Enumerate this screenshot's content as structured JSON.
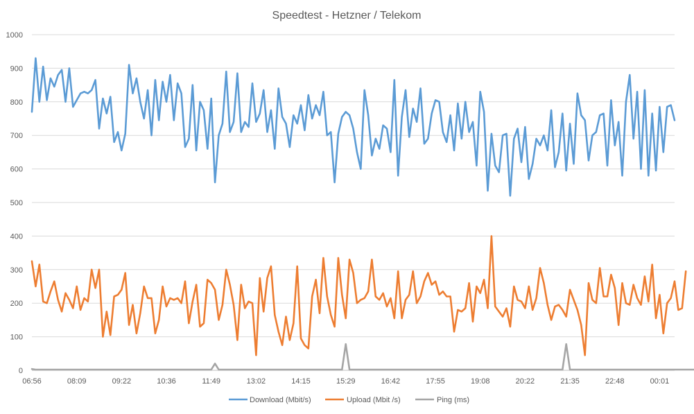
{
  "chart_data": {
    "type": "line",
    "title": "Speedtest - Hetzner / Telekom",
    "xlabel": "",
    "ylabel": "",
    "ylim": [
      0,
      1000
    ],
    "yticks": [
      0,
      100,
      200,
      300,
      400,
      500,
      600,
      700,
      800,
      900,
      1000
    ],
    "x_tick_labels": [
      "06:56",
      "08:09",
      "09:22",
      "10:36",
      "11:49",
      "13:02",
      "14:15",
      "15:29",
      "16:42",
      "17:55",
      "19:08",
      "20:22",
      "21:35",
      "22:48",
      "00:01"
    ],
    "x_label_step": 12,
    "grid": "horizontal",
    "legend_position": "bottom",
    "series": [
      {
        "name": "Download (Mbit/s)",
        "color": "#5B9BD5",
        "values": [
          770,
          930,
          800,
          905,
          805,
          870,
          845,
          880,
          895,
          800,
          900,
          785,
          805,
          825,
          830,
          825,
          835,
          865,
          720,
          810,
          765,
          815,
          680,
          710,
          655,
          705,
          910,
          825,
          870,
          800,
          750,
          835,
          700,
          865,
          745,
          860,
          800,
          880,
          745,
          855,
          825,
          665,
          690,
          850,
          655,
          800,
          775,
          660,
          810,
          560,
          700,
          735,
          890,
          710,
          740,
          885,
          710,
          740,
          725,
          855,
          740,
          765,
          835,
          710,
          775,
          660,
          840,
          755,
          735,
          665,
          760,
          735,
          790,
          715,
          820,
          750,
          790,
          760,
          830,
          700,
          710,
          560,
          705,
          755,
          770,
          760,
          720,
          650,
          600,
          835,
          760,
          640,
          690,
          660,
          730,
          720,
          650,
          865,
          580,
          755,
          835,
          695,
          780,
          740,
          840,
          675,
          690,
          765,
          805,
          800,
          710,
          680,
          760,
          655,
          795,
          690,
          800,
          710,
          740,
          610,
          830,
          770,
          535,
          705,
          610,
          590,
          700,
          705,
          520,
          690,
          720,
          620,
          725,
          570,
          615,
          690,
          670,
          700,
          655,
          775,
          605,
          650,
          765,
          595,
          735,
          615,
          825,
          760,
          745,
          625,
          700,
          710,
          760,
          765,
          610,
          805,
          670,
          740,
          580,
          800,
          880,
          690,
          830,
          600,
          835,
          580,
          765,
          595,
          785,
          650,
          785,
          790,
          745
        ]
      },
      {
        "name": "Upload (Mbit /s)",
        "color": "#ED7D31",
        "values": [
          325,
          250,
          315,
          205,
          200,
          235,
          265,
          210,
          175,
          230,
          210,
          185,
          250,
          180,
          215,
          205,
          300,
          245,
          300,
          100,
          175,
          105,
          220,
          225,
          240,
          290,
          135,
          195,
          110,
          170,
          250,
          215,
          215,
          110,
          150,
          250,
          190,
          215,
          210,
          215,
          200,
          265,
          140,
          205,
          255,
          130,
          140,
          270,
          260,
          240,
          150,
          195,
          300,
          255,
          195,
          90,
          255,
          185,
          205,
          200,
          45,
          275,
          175,
          275,
          310,
          165,
          115,
          75,
          160,
          90,
          140,
          310,
          95,
          75,
          65,
          220,
          270,
          170,
          335,
          220,
          165,
          130,
          335,
          225,
          155,
          330,
          290,
          200,
          210,
          215,
          235,
          330,
          220,
          210,
          230,
          190,
          215,
          155,
          295,
          155,
          210,
          225,
          295,
          200,
          220,
          265,
          290,
          255,
          265,
          225,
          235,
          220,
          220,
          115,
          180,
          175,
          185,
          260,
          145,
          250,
          230,
          270,
          185,
          400,
          190,
          175,
          160,
          185,
          130,
          250,
          210,
          205,
          185,
          250,
          180,
          215,
          305,
          260,
          195,
          150,
          190,
          195,
          180,
          160,
          240,
          210,
          180,
          135,
          45,
          260,
          210,
          200,
          305,
          220,
          220,
          285,
          245,
          135,
          260,
          200,
          195,
          255,
          215,
          195,
          280,
          205,
          315,
          155,
          225,
          110,
          200,
          215,
          265,
          180,
          185,
          295
        ]
      },
      {
        "name": "Ping (ms)",
        "color": "#A5A5A5",
        "values": [
          4,
          2,
          2,
          2,
          2,
          2,
          2,
          2,
          2,
          2,
          2,
          2,
          2,
          2,
          2,
          2,
          2,
          2,
          2,
          2,
          2,
          2,
          2,
          2,
          2,
          2,
          2,
          2,
          2,
          2,
          2,
          2,
          2,
          2,
          2,
          2,
          2,
          2,
          2,
          2,
          2,
          2,
          2,
          2,
          2,
          2,
          2,
          2,
          2,
          20,
          2,
          2,
          2,
          2,
          2,
          2,
          2,
          2,
          2,
          2,
          2,
          2,
          2,
          2,
          2,
          2,
          2,
          2,
          2,
          2,
          2,
          2,
          2,
          2,
          2,
          2,
          2,
          2,
          2,
          2,
          2,
          2,
          2,
          2,
          78,
          2,
          2,
          2,
          2,
          2,
          2,
          2,
          2,
          2,
          2,
          2,
          2,
          2,
          2,
          2,
          2,
          2,
          2,
          2,
          2,
          2,
          2,
          2,
          2,
          2,
          2,
          2,
          2,
          2,
          2,
          2,
          2,
          2,
          2,
          2,
          2,
          2,
          2,
          2,
          2,
          2,
          2,
          2,
          2,
          2,
          2,
          2,
          2,
          2,
          2,
          2,
          2,
          2,
          2,
          2,
          2,
          2,
          2,
          78,
          2,
          2,
          2,
          2,
          2,
          2,
          2,
          2,
          2,
          2,
          2,
          2,
          2,
          2,
          2,
          2,
          2,
          2,
          2,
          2,
          2,
          2,
          2,
          2,
          2,
          2,
          2,
          2,
          2,
          2,
          2,
          2,
          2,
          2,
          2,
          2,
          2
        ]
      }
    ]
  }
}
